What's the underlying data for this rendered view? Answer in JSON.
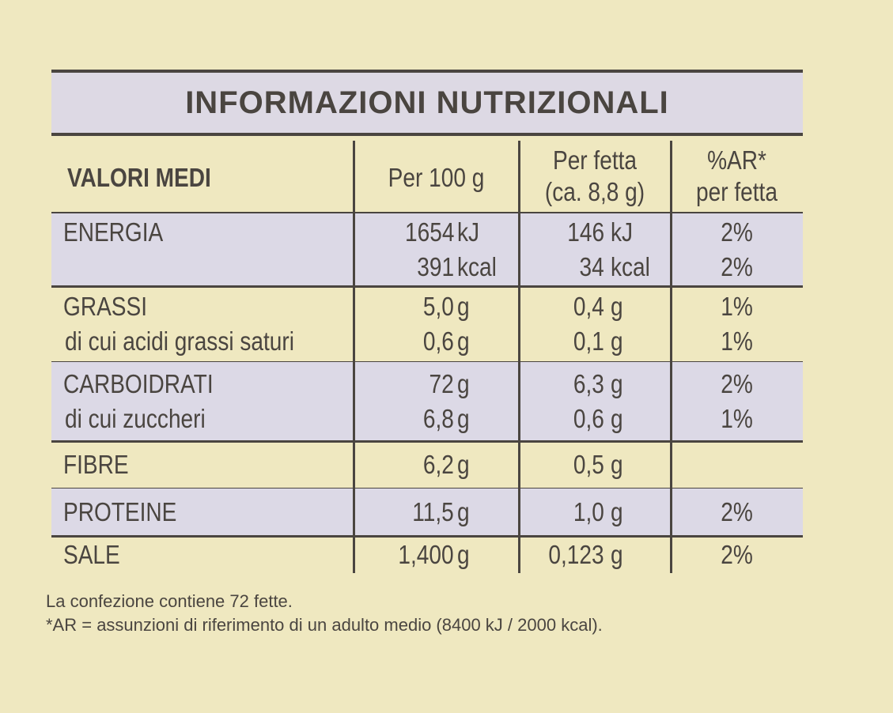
{
  "title": "INFORMAZIONI NUTRIZIONALI",
  "header": {
    "label": "VALORI MEDI",
    "per100": "Per 100 g",
    "perSlice": [
      "Per fetta",
      "(ca. 8,8 g)"
    ],
    "ar": [
      "%AR*",
      "per fetta"
    ]
  },
  "rows": [
    {
      "shaded": true,
      "lines": [
        {
          "name": "ENERGIA",
          "per100": "1654",
          "unit100": "kJ",
          "slice": "146",
          "unitSlice": "kJ",
          "ar": "2%"
        },
        {
          "per100": "391",
          "unit100": "kcal",
          "slice": "34",
          "unitSlice": "kcal",
          "ar": "2%"
        }
      ]
    },
    {
      "shaded": false,
      "lines": [
        {
          "name": "GRASSI",
          "per100": "5,0",
          "unit100": "g",
          "slice": "0,4",
          "unitSlice": "g",
          "ar": "1%"
        },
        {
          "name": "di cui acidi grassi saturi",
          "per100": "0,6",
          "unit100": "g",
          "slice": "0,1",
          "unitSlice": "g",
          "ar": "1%"
        }
      ]
    },
    {
      "shaded": true,
      "lines": [
        {
          "name": "CARBOIDRATI",
          "per100": "72",
          "unit100": "g",
          "slice": "6,3",
          "unitSlice": "g",
          "ar": "2%"
        },
        {
          "name": "di cui zuccheri",
          "per100": "6,8",
          "unit100": "g",
          "slice": "0,6",
          "unitSlice": "g",
          "ar": "1%"
        }
      ]
    },
    {
      "shaded": false,
      "lines": [
        {
          "name": "FIBRE",
          "per100": "6,2",
          "unit100": "g",
          "slice": "0,5",
          "unitSlice": "g"
        }
      ]
    },
    {
      "shaded": true,
      "lines": [
        {
          "name": "PROTEINE",
          "per100": "11,5",
          "unit100": "g",
          "slice": "1,0",
          "unitSlice": "g",
          "ar": "2%"
        }
      ]
    },
    {
      "shaded": false,
      "lines": [
        {
          "name": "SALE",
          "per100": "1,400",
          "unit100": "g",
          "slice": "0,123",
          "unitSlice": "g",
          "ar": "2%"
        }
      ]
    }
  ],
  "footnotes": [
    "La confezione contiene 72 fette.",
    "*AR = assunzioni di riferimento di un adulto medio (8400 kJ / 2000 kcal)."
  ]
}
